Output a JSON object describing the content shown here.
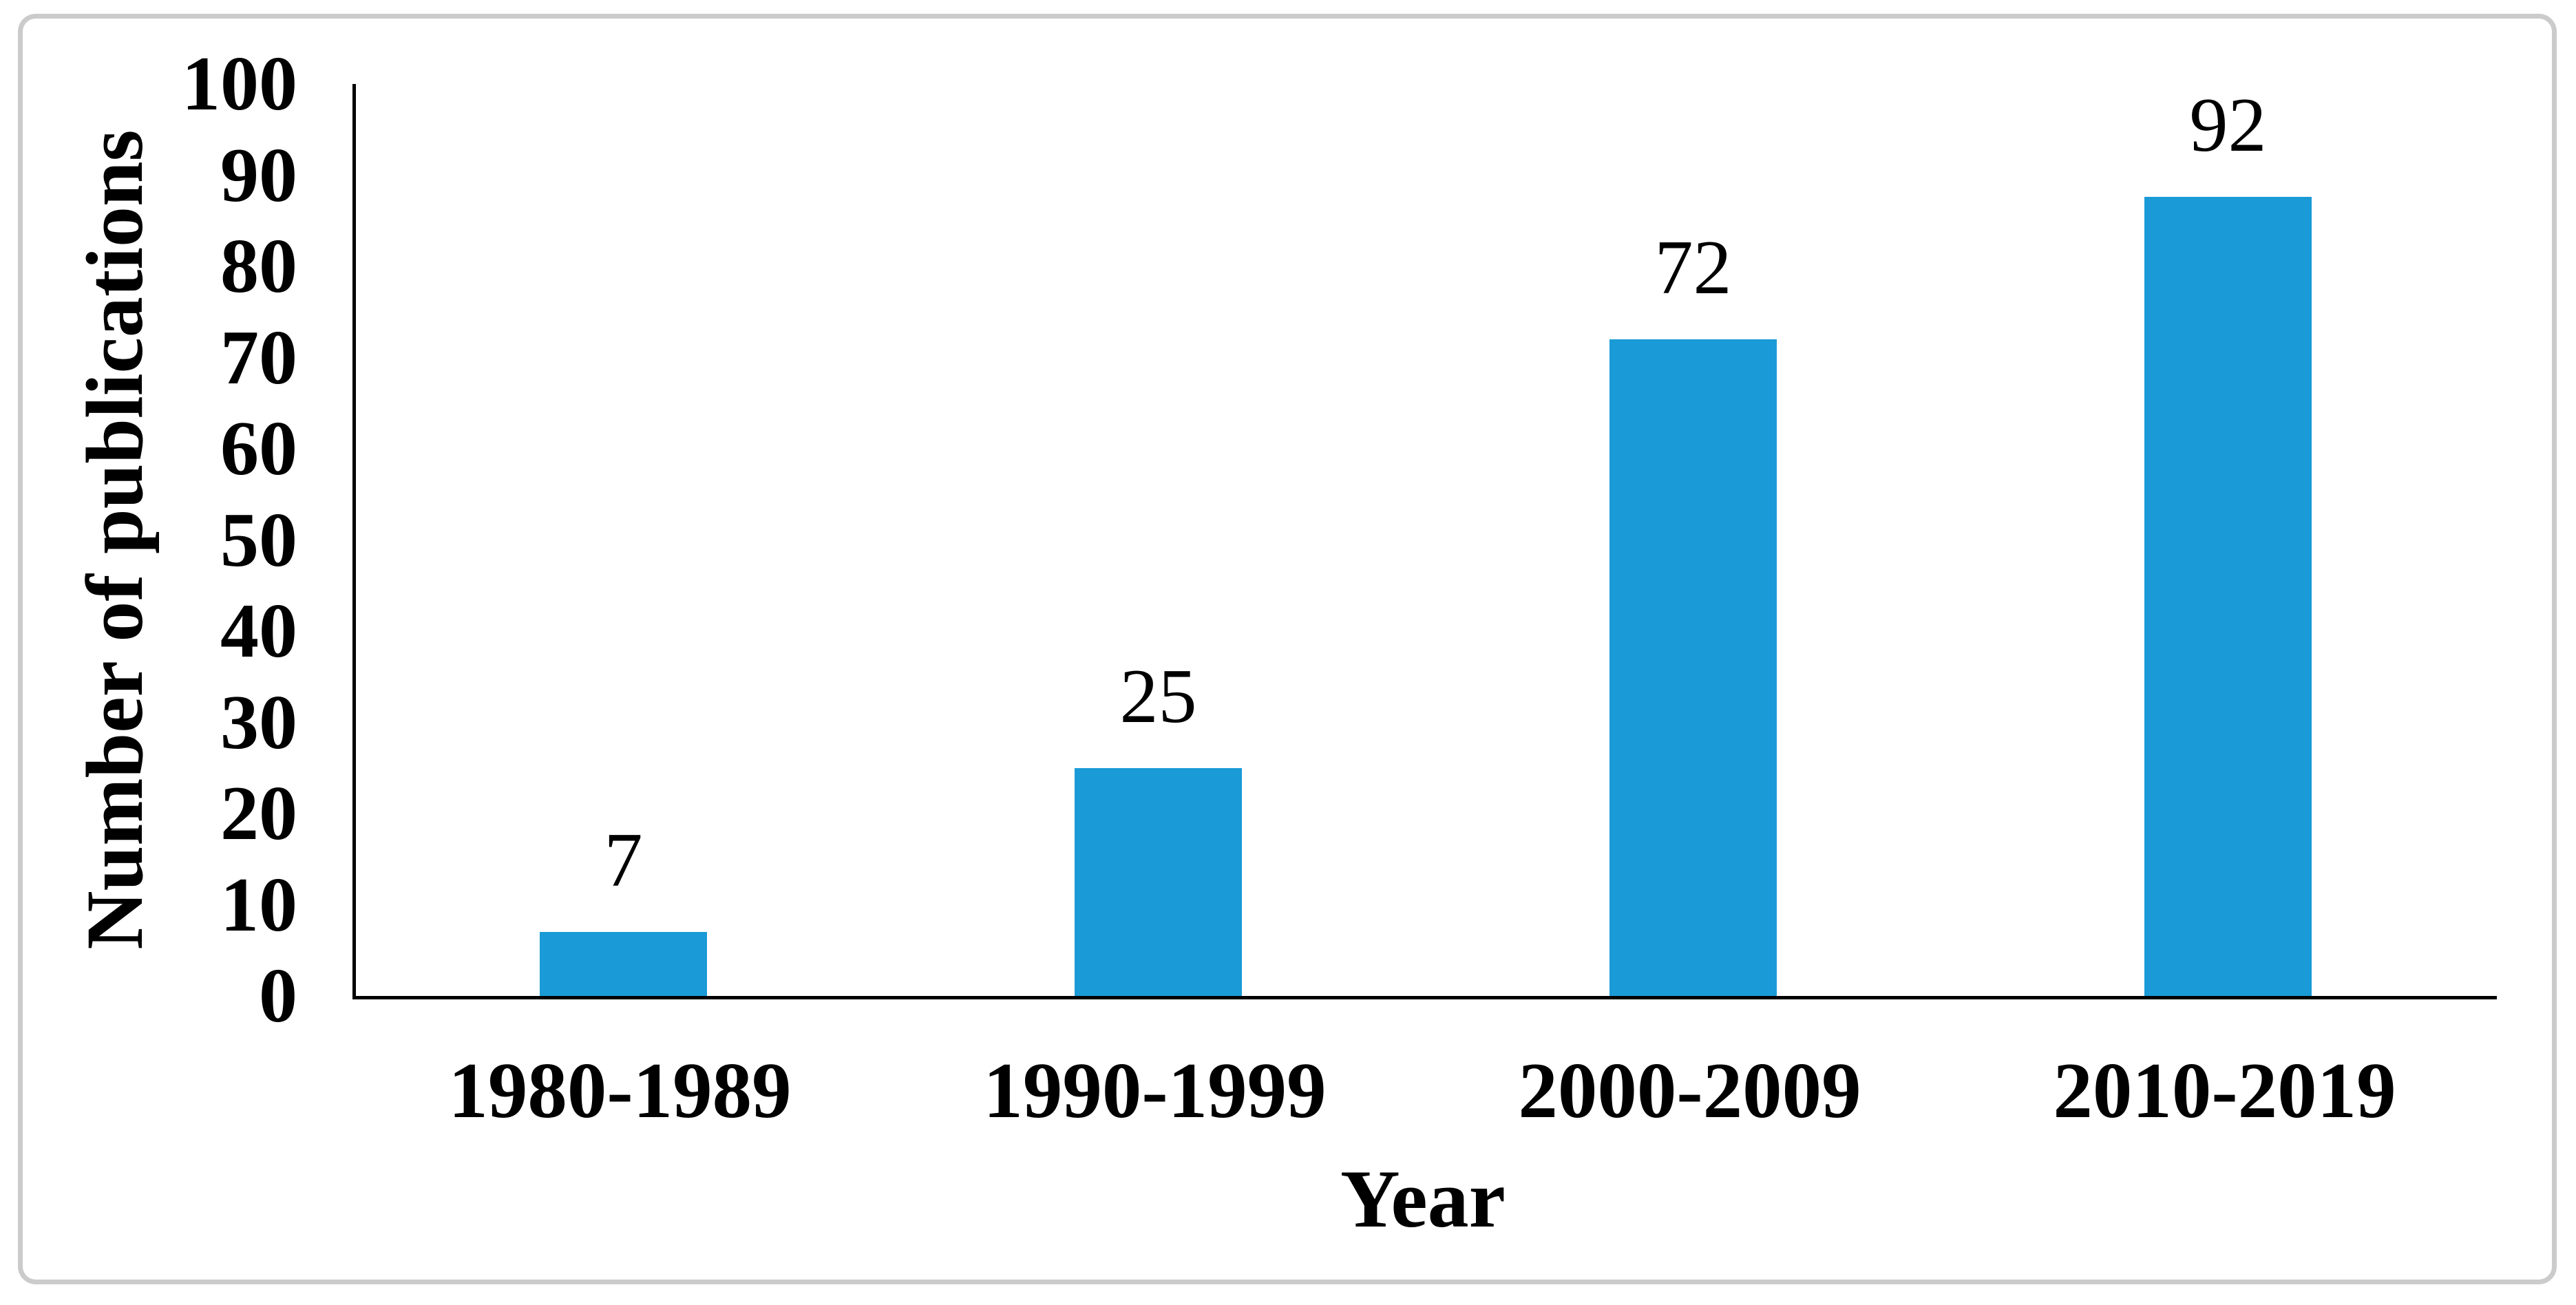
{
  "figure": {
    "background_color": "#ffffff",
    "frame_color": "#cbcbcb"
  },
  "chart_data": {
    "type": "bar",
    "title": "",
    "categories": [
      "1980-1989",
      "1990-1999",
      "2000-2009",
      "2010-2019"
    ],
    "values": [
      7,
      25,
      72,
      92
    ],
    "data_labels": [
      "7",
      "25",
      "72",
      "92"
    ],
    "xlabel": "Year",
    "ylabel": "Number of publications",
    "ylim": [
      0,
      100
    ],
    "ytick_step": 10,
    "yticks": [
      "0",
      "10",
      "20",
      "30",
      "40",
      "50",
      "60",
      "70",
      "80",
      "90",
      "100"
    ],
    "grid": false,
    "legend_position": "none",
    "bar_color": "#1a9ad6",
    "axis_color": "#000000",
    "text_color": "#000000"
  }
}
